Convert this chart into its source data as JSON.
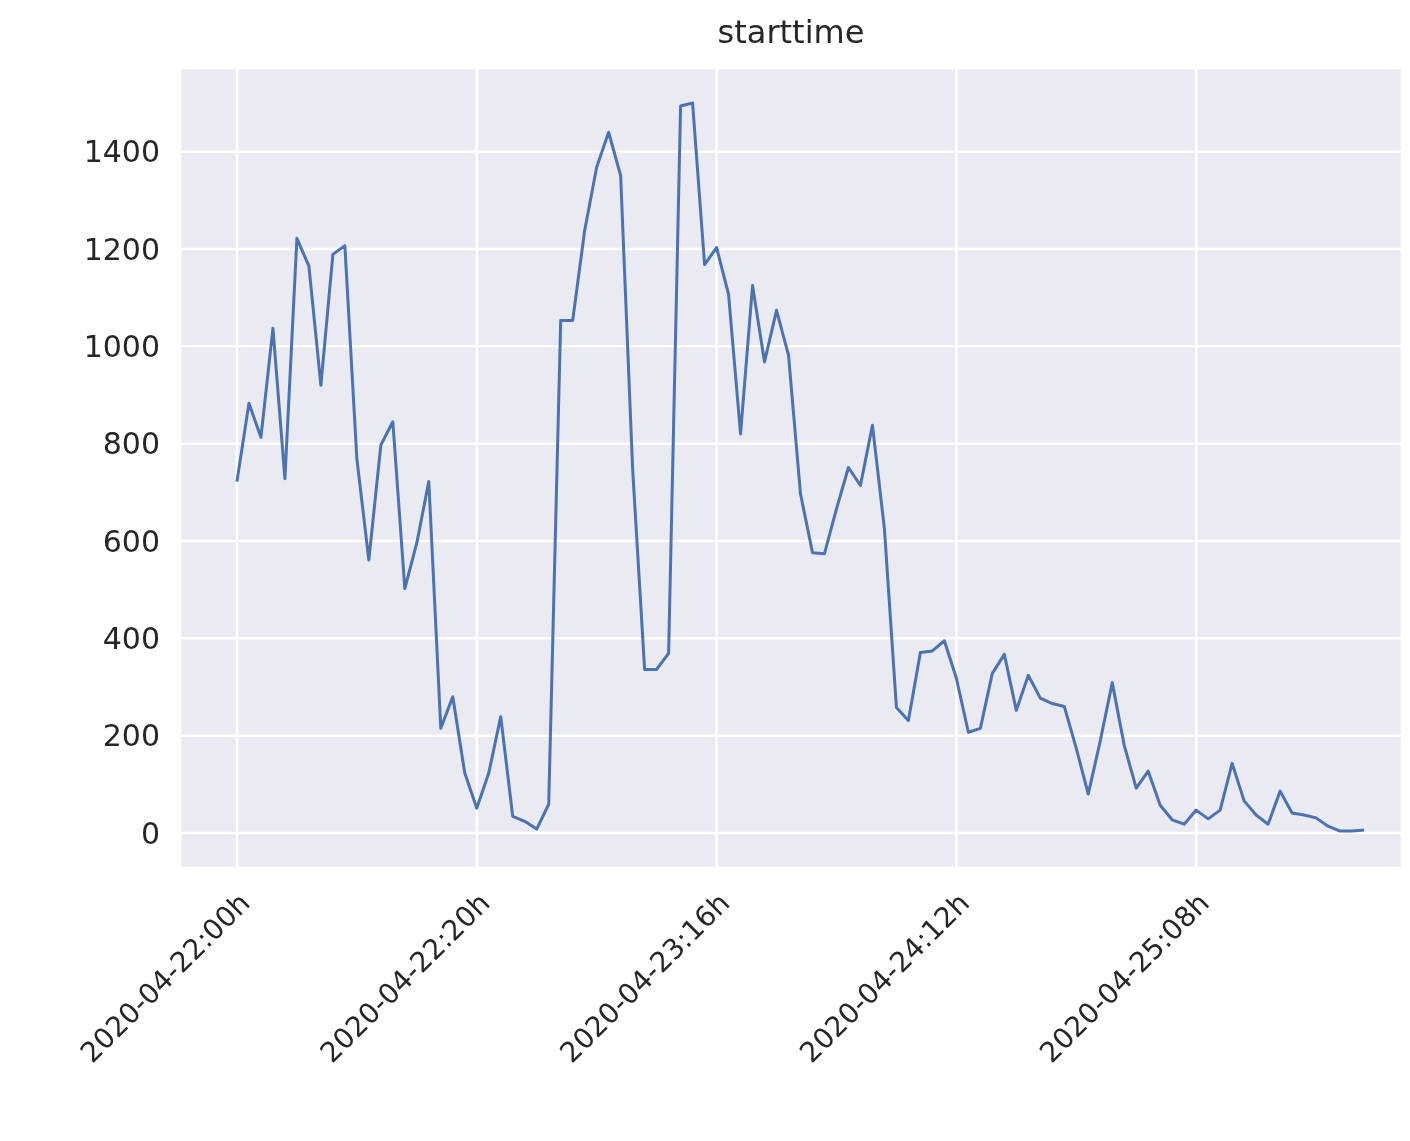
{
  "chart_data": {
    "type": "line",
    "title": "starttime",
    "x": [
      "2020-04-22T00:00",
      "2020-04-22T01:00",
      "2020-04-22T02:00",
      "2020-04-22T03:00",
      "2020-04-22T04:00",
      "2020-04-22T05:00",
      "2020-04-22T06:00",
      "2020-04-22T07:00",
      "2020-04-22T08:00",
      "2020-04-22T09:00",
      "2020-04-22T10:00",
      "2020-04-22T11:00",
      "2020-04-22T12:00",
      "2020-04-22T13:00",
      "2020-04-22T14:00",
      "2020-04-22T15:00",
      "2020-04-22T16:00",
      "2020-04-22T17:00",
      "2020-04-22T18:00",
      "2020-04-22T19:00",
      "2020-04-22T20:00",
      "2020-04-22T21:00",
      "2020-04-22T22:00",
      "2020-04-22T23:00",
      "2020-04-23T00:00",
      "2020-04-23T01:00",
      "2020-04-23T02:00",
      "2020-04-23T03:00",
      "2020-04-23T04:00",
      "2020-04-23T05:00",
      "2020-04-23T06:00",
      "2020-04-23T07:00",
      "2020-04-23T08:00",
      "2020-04-23T09:00",
      "2020-04-23T10:00",
      "2020-04-23T11:00",
      "2020-04-23T12:00",
      "2020-04-23T13:00",
      "2020-04-23T14:00",
      "2020-04-23T15:00",
      "2020-04-23T16:00",
      "2020-04-23T17:00",
      "2020-04-23T18:00",
      "2020-04-23T19:00",
      "2020-04-23T20:00",
      "2020-04-23T21:00",
      "2020-04-23T22:00",
      "2020-04-23T23:00",
      "2020-04-24T00:00",
      "2020-04-24T01:00",
      "2020-04-24T02:00",
      "2020-04-24T03:00",
      "2020-04-24T04:00",
      "2020-04-24T05:00",
      "2020-04-24T06:00",
      "2020-04-24T07:00",
      "2020-04-24T08:00",
      "2020-04-24T09:00",
      "2020-04-24T10:00",
      "2020-04-24T11:00",
      "2020-04-24T12:00",
      "2020-04-24T13:00",
      "2020-04-24T14:00",
      "2020-04-24T15:00",
      "2020-04-24T16:00",
      "2020-04-24T17:00",
      "2020-04-24T18:00",
      "2020-04-24T19:00",
      "2020-04-24T20:00",
      "2020-04-24T21:00",
      "2020-04-24T22:00",
      "2020-04-24T23:00",
      "2020-04-25T00:00",
      "2020-04-25T01:00",
      "2020-04-25T02:00",
      "2020-04-25T03:00",
      "2020-04-25T04:00",
      "2020-04-25T05:00",
      "2020-04-25T06:00",
      "2020-04-25T07:00",
      "2020-04-25T08:00",
      "2020-04-25T09:00",
      "2020-04-25T10:00",
      "2020-04-25T11:00",
      "2020-04-25T12:00",
      "2020-04-25T13:00",
      "2020-04-25T14:00",
      "2020-04-25T15:00",
      "2020-04-25T16:00",
      "2020-04-25T17:00",
      "2020-04-25T18:00",
      "2020-04-25T19:00",
      "2020-04-25T20:00",
      "2020-04-25T21:00",
      "2020-04-25T22:00"
    ],
    "series": [
      {
        "color": "#4c72b0",
        "values": [
          722,
          883,
          813,
          1037,
          728,
          1222,
          1165,
          920,
          1189,
          1207,
          769,
          561,
          797,
          845,
          502,
          596,
          722,
          215,
          280,
          123,
          51,
          123,
          239,
          34,
          24,
          8,
          59,
          1053,
          1053,
          1238,
          1368,
          1440,
          1351,
          748,
          336,
          336,
          369,
          1494,
          1500,
          1168,
          1203,
          1107,
          820,
          1125,
          968,
          1074,
          982,
          697,
          576,
          574,
          666,
          751,
          714,
          838,
          625,
          258,
          231,
          371,
          374,
          395,
          318,
          207,
          215,
          328,
          367,
          252,
          324,
          277,
          266,
          260,
          174,
          80,
          189,
          309,
          180,
          92,
          127,
          57,
          27,
          18,
          47,
          29,
          47,
          143,
          66,
          37,
          18,
          86,
          41,
          37,
          31,
          14,
          4,
          4,
          6
        ]
      }
    ],
    "xlim": [
      "2020-04-21T19:15",
      "2020-04-26T01:10"
    ],
    "xticks": [
      {
        "value": "2020-04-22T00:00",
        "label": "2020-04-22:00h"
      },
      {
        "value": "2020-04-22T20:00",
        "label": "2020-04-22:20h"
      },
      {
        "value": "2020-04-23T16:00",
        "label": "2020-04-23:16h"
      },
      {
        "value": "2020-04-24T12:00",
        "label": "2020-04-24:12h"
      },
      {
        "value": "2020-04-25T08:00",
        "label": "2020-04-25:08h"
      }
    ],
    "ylim": [
      -72,
      1572
    ],
    "yticks": [
      0,
      200,
      400,
      600,
      800,
      1000,
      1200,
      1400
    ],
    "grid": true
  }
}
